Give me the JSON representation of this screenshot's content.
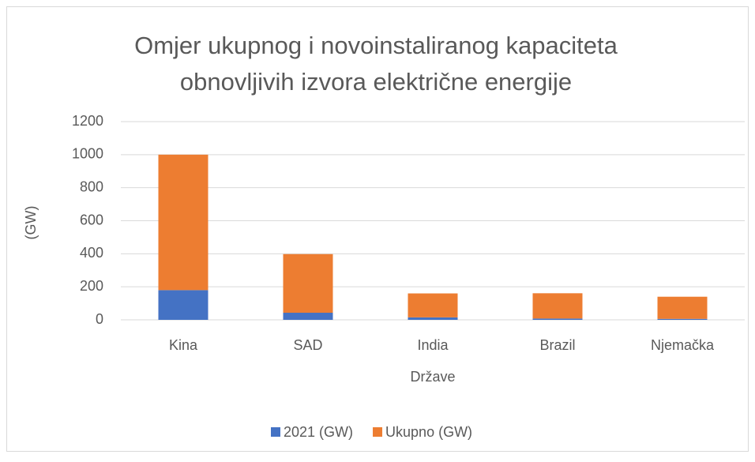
{
  "chart_data": {
    "type": "stacked_bar",
    "title": [
      "Omjer ukupnog i novoinstaliranog kapaciteta",
      "obnovljivih izvora električne energije"
    ],
    "ylabel": "(GW)",
    "xlabel": "Države",
    "categories": [
      "Kina",
      "SAD",
      "India",
      "Brazil",
      "Njemačka"
    ],
    "series": [
      {
        "name": "2021 (GW)",
        "color": "#4472c4",
        "values": [
          180,
          43,
          15,
          8,
          6
        ]
      },
      {
        "name": "Ukupno (GW)",
        "color": "#ed7d31",
        "values": [
          820,
          355,
          145,
          153,
          134
        ]
      }
    ],
    "ylim": [
      0,
      1200
    ],
    "yticks": [
      0,
      200,
      400,
      600,
      800,
      1000,
      1200
    ],
    "grid": true,
    "legend": "bottom"
  }
}
